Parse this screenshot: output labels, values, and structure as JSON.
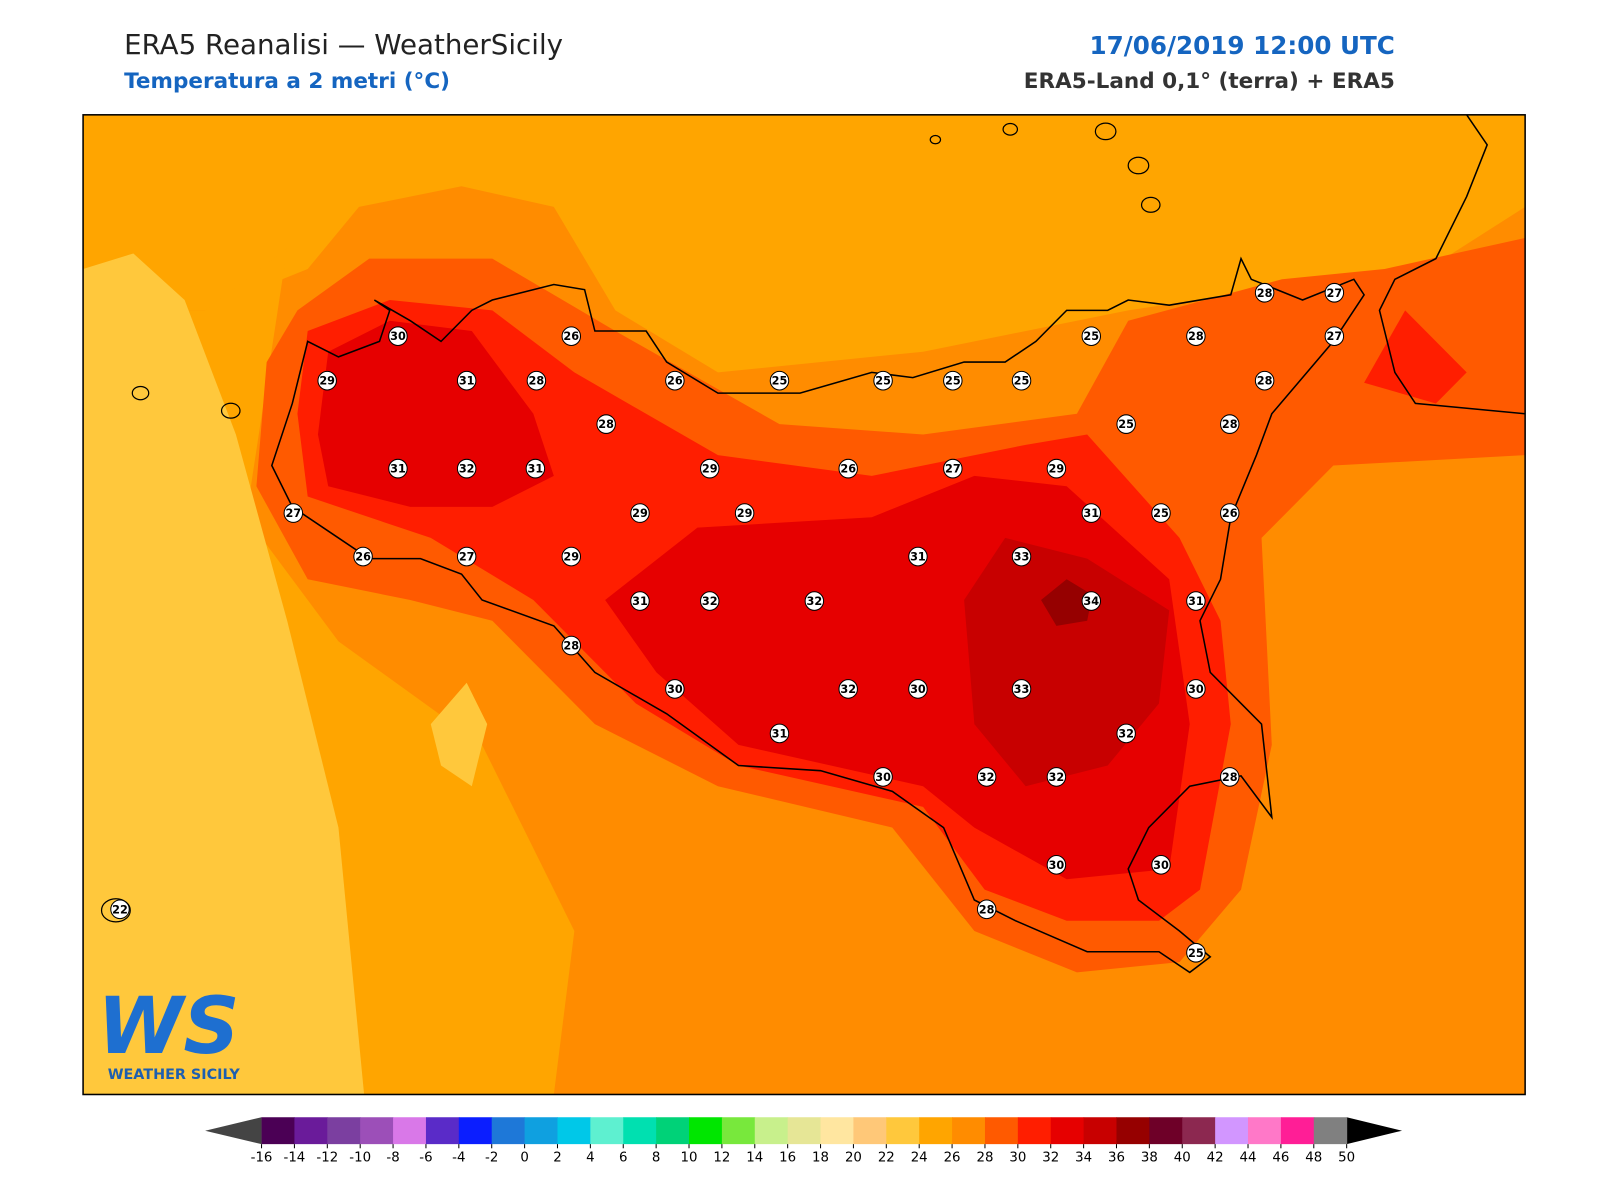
{
  "header": {
    "title": "ERA5 Reanalisi — WeatherSicily",
    "subtitle": "Temperatura a 2 metri (°C)",
    "datetime": "17/06/2019 12:00 UTC",
    "source": "ERA5-Land 0,1° (terra) + ERA5"
  },
  "logo": {
    "mark": "WS",
    "text": "WEATHER SICILY"
  },
  "map": {
    "station_values": [
      30,
      26,
      29,
      31,
      28,
      26,
      25,
      25,
      25,
      25,
      25,
      28,
      28,
      27,
      27,
      28,
      25,
      28,
      28,
      31,
      32,
      31,
      29,
      26,
      27,
      29,
      27,
      29,
      29,
      31,
      25,
      26,
      26,
      27,
      29,
      31,
      33,
      31,
      32,
      32,
      34,
      31,
      28,
      30,
      32,
      30,
      33,
      30,
      31,
      32,
      30,
      32,
      32,
      28,
      30,
      30,
      28,
      25,
      22
    ]
  },
  "colorbar": {
    "ticks": [
      -16,
      -14,
      -12,
      -10,
      -8,
      -6,
      -4,
      -2,
      0,
      2,
      4,
      6,
      8,
      10,
      12,
      14,
      16,
      18,
      20,
      22,
      24,
      26,
      28,
      30,
      32,
      34,
      36,
      38,
      40,
      42,
      44,
      46,
      48,
      50
    ],
    "colors": [
      "#4b0055",
      "#6a1b9a",
      "#7b3fa0",
      "#9c4fb8",
      "#d978e8",
      "#5a2bc8",
      "#0b1eff",
      "#1e78d8",
      "#0fa0e0",
      "#00c8e8",
      "#5ef0d0",
      "#00e0b0",
      "#00d278",
      "#00e600",
      "#78e83c",
      "#c8f08c",
      "#e6e696",
      "#ffe6a0",
      "#ffc878",
      "#ffc83c",
      "#ffa500",
      "#ff8c00",
      "#ff5a00",
      "#ff1e00",
      "#e60000",
      "#c80000",
      "#960000",
      "#6e0028",
      "#8c2850",
      "#d296ff",
      "#ff78c8",
      "#ff1e96",
      "#808080"
    ],
    "under_color": "#444444",
    "over_color": "#000000"
  }
}
